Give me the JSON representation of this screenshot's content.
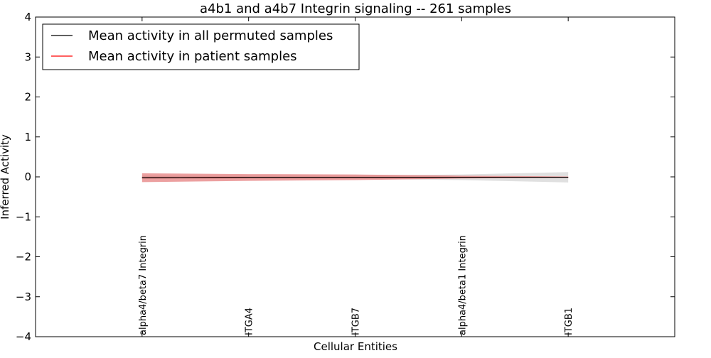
{
  "chart_data": {
    "type": "line",
    "title": "a4b1 and a4b7 Integrin signaling -- 261 samples",
    "xlabel": "Cellular Entities",
    "ylabel": "Inferred Activity",
    "ylim": [
      -4,
      4
    ],
    "y_ticks": [
      4,
      3,
      2,
      1,
      0,
      -1,
      -2,
      -3,
      -4
    ],
    "y_tick_labels": [
      "4",
      "3",
      "2",
      "1",
      "0",
      "−1",
      "−2",
      "−3",
      "−4"
    ],
    "categories": [
      "alpha4/beta7 Integrin",
      "ITGA4",
      "ITGB7",
      "alpha4/beta1 Integrin",
      "ITGB1"
    ],
    "x_range": [
      -1,
      5
    ],
    "legend": {
      "location": "top-left",
      "entries": [
        {
          "label": "Mean activity in all permuted samples",
          "color": "#000000"
        },
        {
          "label": "Mean activity in patient samples",
          "color": "#ff0000"
        }
      ]
    },
    "series": [
      {
        "name": "Mean activity in all permuted samples",
        "color": "#000000",
        "values": [
          -0.02,
          -0.01,
          -0.01,
          -0.01,
          -0.01
        ],
        "band_lower": [
          -0.05,
          -0.05,
          -0.05,
          -0.08,
          -0.14
        ],
        "band_upper": [
          0.03,
          0.03,
          0.03,
          0.06,
          0.12
        ],
        "band_color": "#bbbbbb"
      },
      {
        "name": "Mean activity in patient samples",
        "color": "#ff0000",
        "values": [
          -0.02,
          -0.01,
          -0.01,
          -0.01,
          -0.01
        ],
        "band_lower": [
          -0.13,
          -0.1,
          -0.08,
          -0.04,
          -0.02
        ],
        "band_upper": [
          0.09,
          0.07,
          0.06,
          0.03,
          0.01
        ],
        "band_color": "#e06060"
      }
    ]
  }
}
